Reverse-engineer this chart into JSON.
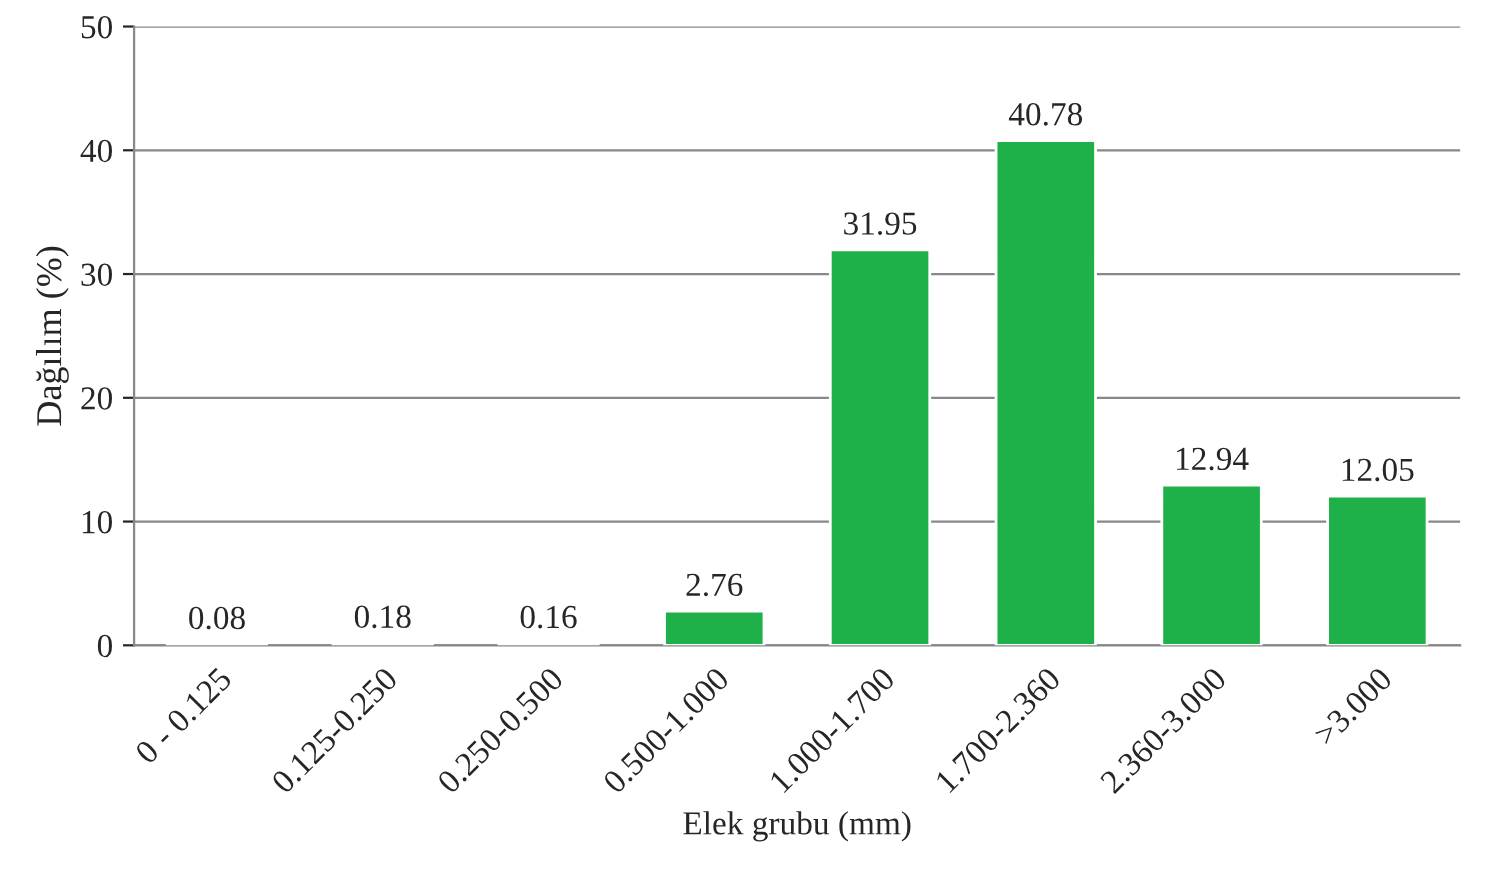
{
  "chart_data": {
    "type": "bar",
    "xlabel": "Elek grubu (mm)",
    "ylabel": "Dağılım (%)",
    "categories": [
      "0 - 0.125",
      "0.125-0.250",
      "0.250-0.500",
      "0.500-1.000",
      "1.000-1.700",
      "1.700-2.360",
      "2.360-3.000",
      ">3.000"
    ],
    "values": [
      0.08,
      0.18,
      0.16,
      2.76,
      31.95,
      40.78,
      12.94,
      12.05
    ],
    "color": "#1fb04a",
    "ylim": [
      0,
      50
    ],
    "yticks": [
      0,
      10,
      20,
      30,
      40,
      50
    ],
    "grid": "y",
    "data_labels": true,
    "legend": false
  }
}
